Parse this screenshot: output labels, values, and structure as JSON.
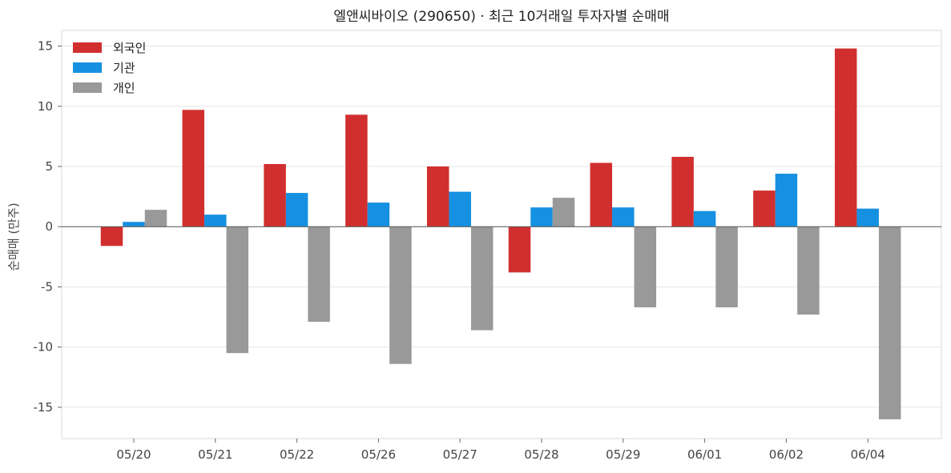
{
  "chart_data": {
    "type": "bar",
    "title": "엘앤씨바이오 (290650) · 최근 10거래일 투자자별 순매매",
    "xlabel": "",
    "ylabel": "순매매 (만주)",
    "ylim": [
      -17.6,
      16.3
    ],
    "yticks": [
      15,
      10,
      5,
      0,
      -5,
      -10,
      -15
    ],
    "grid": true,
    "legend_position": "top-left",
    "categories": [
      "05/20",
      "05/21",
      "05/22",
      "05/26",
      "05/27",
      "05/28",
      "05/29",
      "06/01",
      "06/02",
      "06/04"
    ],
    "series": [
      {
        "name": "외국인",
        "color": "#d12f2f",
        "values": [
          -1.6,
          9.7,
          5.2,
          9.3,
          5.0,
          -3.8,
          5.3,
          5.8,
          3.0,
          14.8
        ]
      },
      {
        "name": "기관",
        "color": "#1690e0",
        "values": [
          0.4,
          1.0,
          2.8,
          2.0,
          2.9,
          1.6,
          1.6,
          1.3,
          4.4,
          1.5
        ]
      },
      {
        "name": "개인",
        "color": "#999999",
        "values": [
          1.4,
          -10.5,
          -7.9,
          -11.4,
          -8.6,
          2.4,
          -6.7,
          -6.7,
          -7.3,
          -16.0
        ]
      }
    ]
  }
}
